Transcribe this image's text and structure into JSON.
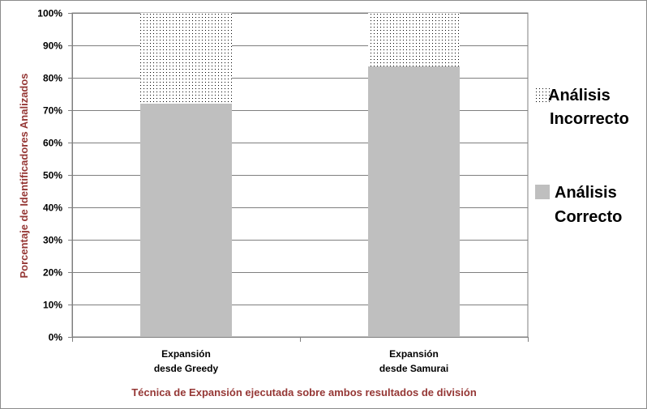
{
  "chart_data": {
    "type": "bar",
    "stacked": true,
    "categories": [
      [
        "Expansión",
        "desde Greedy"
      ],
      [
        "Expansión",
        "desde Samurai"
      ]
    ],
    "series": [
      {
        "name": [
          "Análisis",
          "Correcto"
        ],
        "values": [
          72,
          83.5
        ],
        "color": "#bfbfbf",
        "pattern": "solid"
      },
      {
        "name": [
          "Análisis",
          "Incorrecto"
        ],
        "values": [
          28,
          16.5
        ],
        "color": "#000000",
        "pattern": "dots"
      }
    ],
    "xlabel": "Técnica de Expansión ejecutada sobre ambos resultados de división",
    "ylabel": "Porcentaje de Identificadores Analizados",
    "ylim": [
      0,
      100
    ],
    "yticks": [
      0,
      10,
      20,
      30,
      40,
      50,
      60,
      70,
      80,
      90,
      100
    ],
    "ytick_format": "percent",
    "grid": true,
    "legend": "right",
    "colors": {
      "axis_title": "#953735",
      "gridline": "#7f7f7f",
      "border": "#7f7f7f"
    }
  }
}
